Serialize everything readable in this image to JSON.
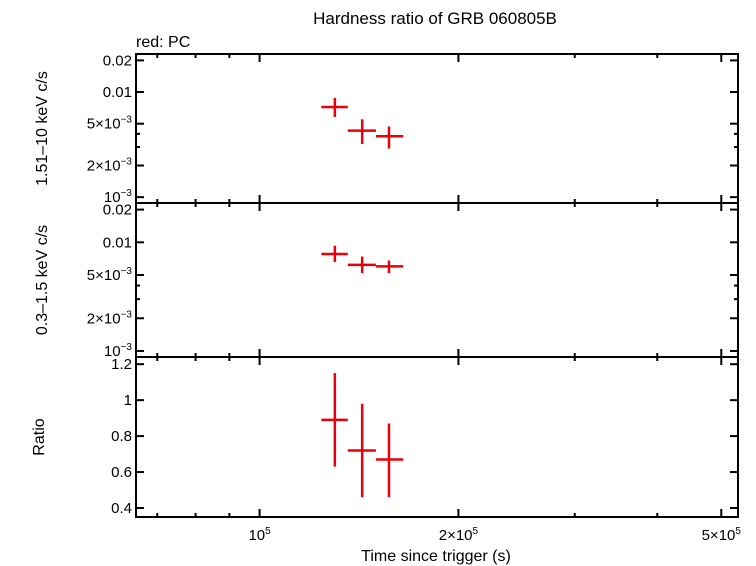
{
  "chart_data": {
    "type": "scatter",
    "title": "Hardness ratio of GRB 060805B",
    "legend": "red: PC",
    "xlabel": "Time since trigger (s)",
    "xscale": "log",
    "xlim": [
      65000,
      530000
    ],
    "x_ticks": [
      {
        "value": 100000,
        "mantissa": "10",
        "exp": "5"
      },
      {
        "value": 200000,
        "mantissa": "2×10",
        "exp": "5"
      },
      {
        "value": 500000,
        "mantissa": "5×10",
        "exp": "5"
      }
    ],
    "panels": [
      {
        "ylabel": "1.51–10 keV c/s",
        "yscale": "log",
        "ylim": [
          0.00088,
          0.023
        ],
        "y_ticks": [
          {
            "value": 0.02,
            "label": "0.02"
          },
          {
            "value": 0.01,
            "label": "0.01"
          },
          {
            "value": 0.005,
            "mantissa": "5×10",
            "exp": "−3"
          },
          {
            "value": 0.002,
            "mantissa": "2×10",
            "exp": "−3"
          },
          {
            "value": 0.001,
            "mantissa": "10",
            "exp": "−3"
          }
        ],
        "points": [
          {
            "x": 130000,
            "x_lo": 124000,
            "x_hi": 136000,
            "y": 0.0072,
            "y_lo": 0.0058,
            "y_hi": 0.0088
          },
          {
            "x": 143000,
            "x_lo": 136000,
            "x_hi": 150000,
            "y": 0.0043,
            "y_lo": 0.0032,
            "y_hi": 0.0055
          },
          {
            "x": 157000,
            "x_lo": 150000,
            "x_hi": 165000,
            "y": 0.0038,
            "y_lo": 0.0029,
            "y_hi": 0.0047
          }
        ]
      },
      {
        "ylabel": "0.3–1.5 keV c/s",
        "yscale": "log",
        "ylim": [
          0.00088,
          0.023
        ],
        "y_ticks": [
          {
            "value": 0.02,
            "label": "0.02"
          },
          {
            "value": 0.01,
            "label": "0.01"
          },
          {
            "value": 0.005,
            "mantissa": "5×10",
            "exp": "−3"
          },
          {
            "value": 0.002,
            "mantissa": "2×10",
            "exp": "−3"
          },
          {
            "value": 0.001,
            "mantissa": "10",
            "exp": "−3"
          }
        ],
        "points": [
          {
            "x": 130000,
            "x_lo": 124000,
            "x_hi": 136000,
            "y": 0.0078,
            "y_lo": 0.0066,
            "y_hi": 0.0093
          },
          {
            "x": 143000,
            "x_lo": 136000,
            "x_hi": 150000,
            "y": 0.0062,
            "y_lo": 0.0052,
            "y_hi": 0.0074
          },
          {
            "x": 157000,
            "x_lo": 150000,
            "x_hi": 165000,
            "y": 0.006,
            "y_lo": 0.0052,
            "y_hi": 0.0068
          }
        ]
      },
      {
        "ylabel": "Ratio",
        "yscale": "linear",
        "ylim": [
          0.35,
          1.24
        ],
        "y_ticks": [
          {
            "value": 1.2,
            "label": "1.2"
          },
          {
            "value": 1.0,
            "label": "1"
          },
          {
            "value": 0.8,
            "label": "0.8"
          },
          {
            "value": 0.6,
            "label": "0.6"
          },
          {
            "value": 0.4,
            "label": "0.4"
          }
        ],
        "points": [
          {
            "x": 130000,
            "x_lo": 124000,
            "x_hi": 136000,
            "y": 0.89,
            "y_lo": 0.63,
            "y_hi": 1.15
          },
          {
            "x": 143000,
            "x_lo": 136000,
            "x_hi": 150000,
            "y": 0.72,
            "y_lo": 0.46,
            "y_hi": 0.98
          },
          {
            "x": 157000,
            "x_lo": 150000,
            "x_hi": 165000,
            "y": 0.67,
            "y_lo": 0.46,
            "y_hi": 0.87
          }
        ]
      }
    ],
    "colors": {
      "series": "#e8000b",
      "axes": "#000000"
    },
    "grid": false
  }
}
